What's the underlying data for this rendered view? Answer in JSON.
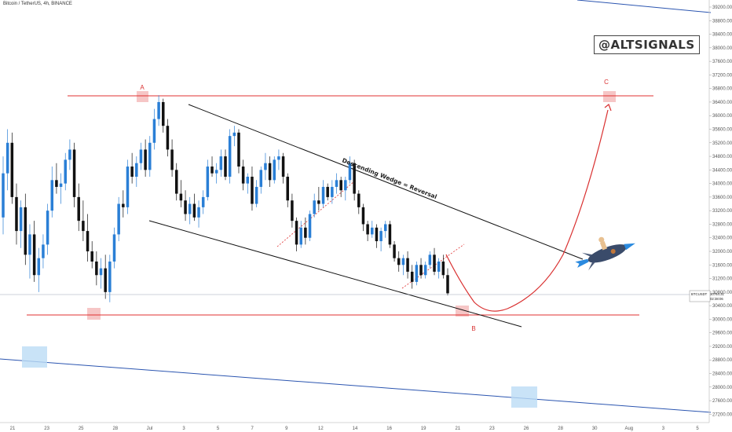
{
  "header": {
    "title": "Bitcoin / TetherUS, 4h, BINANCE"
  },
  "watermark": "@ALTSIGNALS",
  "annotations": {
    "wedge_label": "Descending Wedge = Reversal",
    "point_a": "A",
    "point_b": "B",
    "point_c": "C"
  },
  "price_tag": {
    "symbol": "BTCUSDT",
    "value": "30764.31",
    "countdown": "02:38:06"
  },
  "colors": {
    "up": "#2a7fd6",
    "down": "#111111",
    "support_line": "#e03030",
    "wedge_line": "#111111",
    "channel_line": "#2b55b0",
    "box_red": "#f4b8b8",
    "box_blue": "#bcdcf5",
    "projection": "#d93030"
  },
  "chart_data": {
    "type": "candlestick",
    "symbol": "BTCUSDT",
    "interval": "4h",
    "y_axis": {
      "min": 27000,
      "max": 39200,
      "ticks": [
        27200,
        27600,
        28000,
        28400,
        28800,
        29200,
        29600,
        30000,
        30400,
        30800,
        31200,
        31600,
        32000,
        32400,
        32800,
        33200,
        33600,
        34000,
        34400,
        34800,
        35200,
        35600,
        36000,
        36400,
        36800,
        37200,
        37600,
        38000,
        38400,
        38800,
        39200
      ]
    },
    "x_axis": {
      "ticks": [
        "21",
        "23",
        "25",
        "28",
        "Jul",
        "3",
        "5",
        "7",
        "9",
        "12",
        "14",
        "16",
        "19",
        "21",
        "23",
        "26",
        "28",
        "30",
        "Aug",
        "3",
        "5"
      ]
    },
    "levels": {
      "resistance": 36650,
      "support": 30050
    },
    "ohlc": [
      [
        33000,
        34800,
        32500,
        34300
      ],
      [
        34300,
        35600,
        33800,
        35200
      ],
      [
        35200,
        35500,
        33400,
        33600
      ],
      [
        33600,
        34000,
        32200,
        32600
      ],
      [
        32600,
        33500,
        32100,
        33300
      ],
      [
        33300,
        33700,
        31600,
        31900
      ],
      [
        31900,
        32800,
        31200,
        32500
      ],
      [
        32500,
        32900,
        31100,
        31300
      ],
      [
        31300,
        32100,
        30800,
        31800
      ],
      [
        31800,
        32500,
        31500,
        32200
      ],
      [
        32200,
        33400,
        31900,
        33200
      ],
      [
        33200,
        34500,
        33000,
        34100
      ],
      [
        34100,
        34600,
        33700,
        33900
      ],
      [
        33900,
        34300,
        33400,
        34000
      ],
      [
        34000,
        34900,
        33800,
        34700
      ],
      [
        34700,
        35300,
        34400,
        35000
      ],
      [
        35000,
        35200,
        33300,
        33600
      ],
      [
        33600,
        34000,
        32600,
        32900
      ],
      [
        32900,
        33500,
        32300,
        32600
      ],
      [
        32600,
        33100,
        31700,
        32000
      ],
      [
        32000,
        32300,
        31500,
        31700
      ],
      [
        31700,
        32000,
        31000,
        31300
      ],
      [
        31300,
        31800,
        30900,
        31500
      ],
      [
        31500,
        31900,
        30600,
        30800
      ],
      [
        30800,
        31900,
        30500,
        31700
      ],
      [
        31700,
        32700,
        31500,
        32500
      ],
      [
        32500,
        33600,
        32300,
        33400
      ],
      [
        33400,
        33800,
        33000,
        33300
      ],
      [
        33300,
        34700,
        33100,
        34500
      ],
      [
        34500,
        34900,
        34000,
        34200
      ],
      [
        34200,
        34800,
        33900,
        34600
      ],
      [
        34600,
        35200,
        34400,
        35000
      ],
      [
        35000,
        35300,
        34200,
        34400
      ],
      [
        34400,
        35400,
        34200,
        35200
      ],
      [
        35200,
        36200,
        35000,
        35900
      ],
      [
        35900,
        36600,
        35700,
        36400
      ],
      [
        36400,
        36500,
        35500,
        35700
      ],
      [
        35700,
        35900,
        34800,
        35000
      ],
      [
        35000,
        35300,
        34200,
        34400
      ],
      [
        34400,
        34600,
        33500,
        33700
      ],
      [
        33700,
        34100,
        33300,
        33500
      ],
      [
        33500,
        33800,
        32900,
        33100
      ],
      [
        33100,
        33600,
        32800,
        33400
      ],
      [
        33400,
        33700,
        32900,
        33000
      ],
      [
        33000,
        33500,
        32700,
        33300
      ],
      [
        33300,
        33800,
        33100,
        33600
      ],
      [
        33600,
        34700,
        33500,
        34500
      ],
      [
        34500,
        34800,
        34200,
        34300
      ],
      [
        34300,
        34600,
        34000,
        34400
      ],
      [
        34400,
        35000,
        34200,
        34800
      ],
      [
        34800,
        35000,
        34100,
        34200
      ],
      [
        34200,
        35600,
        34000,
        35400
      ],
      [
        35400,
        35700,
        35100,
        35500
      ],
      [
        35500,
        35600,
        34300,
        34500
      ],
      [
        34500,
        34700,
        33800,
        34000
      ],
      [
        34000,
        34300,
        33700,
        34200
      ],
      [
        34200,
        34500,
        33200,
        33400
      ],
      [
        33400,
        34100,
        33300,
        33900
      ],
      [
        33900,
        34500,
        33700,
        34400
      ],
      [
        34400,
        34900,
        34100,
        34600
      ],
      [
        34600,
        34800,
        33900,
        34100
      ],
      [
        34100,
        34800,
        34000,
        34700
      ],
      [
        34700,
        35000,
        34400,
        34800
      ],
      [
        34800,
        34900,
        34000,
        34200
      ],
      [
        34200,
        34300,
        33300,
        33500
      ],
      [
        33500,
        33700,
        32700,
        32900
      ],
      [
        32900,
        33000,
        32000,
        32200
      ],
      [
        32200,
        32900,
        32100,
        32700
      ],
      [
        32700,
        33000,
        32200,
        32400
      ],
      [
        32400,
        33200,
        32300,
        33100
      ],
      [
        33100,
        33700,
        33000,
        33500
      ],
      [
        33500,
        33900,
        33200,
        33400
      ],
      [
        33400,
        34100,
        33300,
        33900
      ],
      [
        33900,
        34000,
        33500,
        33600
      ],
      [
        33600,
        34100,
        33400,
        33900
      ],
      [
        33900,
        34300,
        33700,
        34100
      ],
      [
        34100,
        34200,
        33600,
        33800
      ],
      [
        33800,
        34200,
        33500,
        34100
      ],
      [
        34100,
        34800,
        34000,
        34600
      ],
      [
        34600,
        34700,
        33500,
        33700
      ],
      [
        33700,
        33800,
        33100,
        33300
      ],
      [
        33300,
        33400,
        32600,
        32800
      ],
      [
        32800,
        32900,
        32300,
        32500
      ],
      [
        32500,
        32900,
        32400,
        32700
      ],
      [
        32700,
        32800,
        32100,
        32300
      ],
      [
        32300,
        32700,
        32000,
        32600
      ],
      [
        32600,
        32900,
        32400,
        32800
      ],
      [
        32800,
        32900,
        32100,
        32200
      ],
      [
        32200,
        32300,
        31700,
        31800
      ],
      [
        31800,
        32000,
        31400,
        31600
      ],
      [
        31600,
        31900,
        31300,
        31800
      ],
      [
        31800,
        32000,
        31200,
        31400
      ],
      [
        31400,
        31600,
        30900,
        31100
      ],
      [
        31100,
        31700,
        31000,
        31600
      ],
      [
        31600,
        31800,
        31200,
        31300
      ],
      [
        31300,
        31700,
        31200,
        31600
      ],
      [
        31600,
        32000,
        31500,
        31900
      ],
      [
        31900,
        32100,
        31300,
        31400
      ],
      [
        31400,
        31800,
        31200,
        31700
      ],
      [
        31700,
        31900,
        31200,
        31300
      ],
      [
        31300,
        31500,
        30700,
        30764
      ]
    ]
  }
}
